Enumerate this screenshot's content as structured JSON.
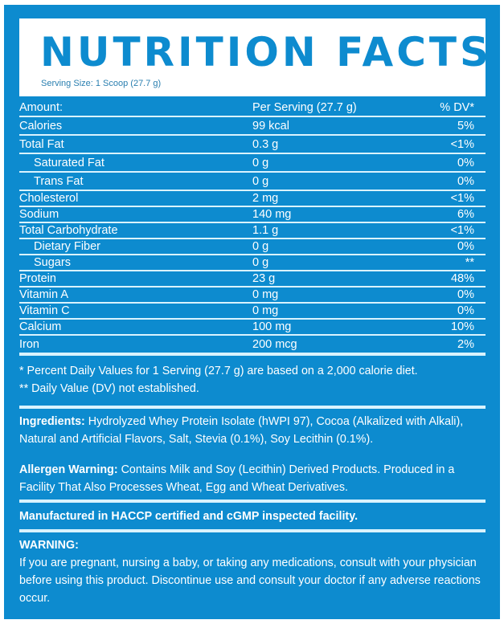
{
  "title": "NUTRITION FACTS",
  "serving_size": "Serving Size: 1 Scoop (27.7 g)",
  "table": {
    "header": {
      "name": "Amount:",
      "value": "Per Serving (27.7 g)",
      "dv": "% DV*"
    },
    "rows": [
      {
        "name": "Calories",
        "value": "99 kcal",
        "dv": "5%"
      },
      {
        "name": "Total Fat",
        "value": "0.3 g",
        "dv": "<1%"
      },
      {
        "name": "Saturated Fat",
        "value": "0 g",
        "dv": "0%"
      },
      {
        "name": "Trans Fat",
        "value": "0 g",
        "dv": "0%"
      },
      {
        "name": "Cholesterol",
        "value": "2 mg",
        "dv": "<1%"
      },
      {
        "name": "Sodium",
        "value": "140 mg",
        "dv": "6%"
      },
      {
        "name": "Total Carbohydrate",
        "value": "1.1 g",
        "dv": "<1%"
      },
      {
        "name": "Dietary Fiber",
        "value": "0 g",
        "dv": "0%"
      },
      {
        "name": "Sugars",
        "value": "0 g",
        "dv": "**"
      },
      {
        "name": "Protein",
        "value": "23 g",
        "dv": "48%"
      },
      {
        "name": "Vitamin A",
        "value": "0 mg",
        "dv": "0%"
      },
      {
        "name": "Vitamin C",
        "value": "0 mg",
        "dv": "0%"
      },
      {
        "name": "Calcium",
        "value": "100 mg",
        "dv": "10%"
      },
      {
        "name": "Iron",
        "value": "200 mcg",
        "dv": "2%"
      }
    ]
  },
  "footnotes": [
    "* Percent Daily Values for 1 Serving (27.7 g) are based on a 2,000 calorie diet.",
    "** Daily Value (DV) not established."
  ],
  "ingredients": {
    "label": "Ingredients:",
    "text": " Hydrolyzed Whey Protein Isolate (hWPI 97), Cocoa (Alkalized with Alkali), Natural and Artificial Flavors, Salt, Stevia (0.1%), Soy Lecithin (0.1%)."
  },
  "allergen": {
    "label": "Allergen Warning:",
    "text": " Contains Milk and Soy (Lecithin) Derived Products. Produced in a Facility That Also Processes Wheat, Egg and Wheat Derivatives."
  },
  "manufactured": "Manufactured in HACCP certified and cGMP inspected facility.",
  "warning": {
    "label": "WARNING:",
    "text": "If you are pregnant, nursing a baby, or taking any medications, consult with your physician before using this product. Discontinue use and consult your doctor if any adverse reactions occur."
  },
  "colors": {
    "background": "#0d8bcf",
    "rules": "#d9f3ff",
    "text": "#ffffff"
  }
}
